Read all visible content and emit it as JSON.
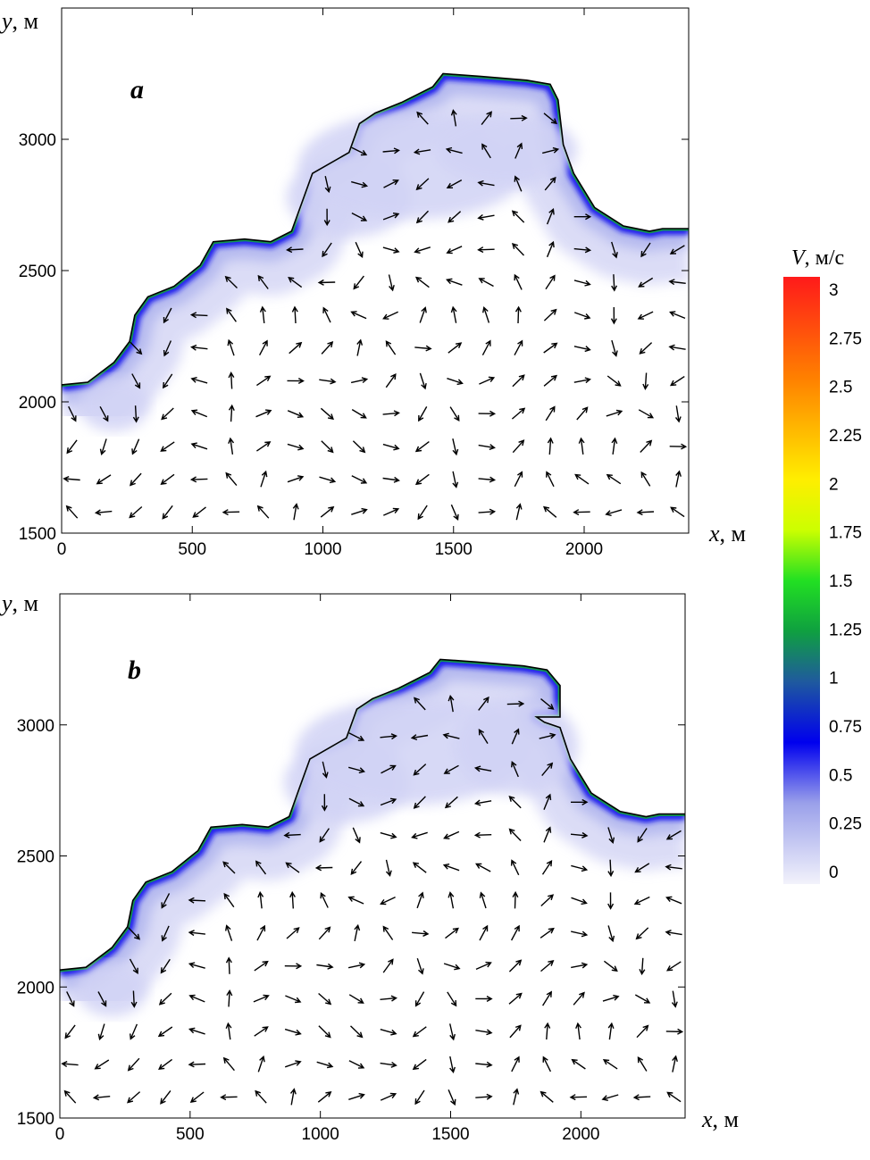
{
  "chart_data": [
    {
      "type": "vector-field",
      "panel_label": "a",
      "xlabel_var": "x",
      "xlabel_unit": ", м",
      "ylabel_var": "y",
      "ylabel_unit": ", м",
      "xlim": [
        0,
        2400
      ],
      "ylim": [
        1500,
        3500
      ],
      "xticks": [
        {
          "value": 0,
          "label": "0"
        },
        {
          "value": 500,
          "label": "500"
        },
        {
          "value": 1000,
          "label": "1000"
        },
        {
          "value": 1500,
          "label": "1500"
        },
        {
          "value": 2000,
          "label": "2000"
        }
      ],
      "yticks": [
        {
          "value": 1500,
          "label": "1500"
        },
        {
          "value": 2000,
          "label": "2000"
        },
        {
          "value": 2500,
          "label": "2500"
        },
        {
          "value": 3000,
          "label": "3000"
        }
      ],
      "coastline": [
        [
          0,
          2065
        ],
        [
          100,
          2075
        ],
        [
          200,
          2150
        ],
        [
          260,
          2230
        ],
        [
          280,
          2330
        ],
        [
          330,
          2400
        ],
        [
          430,
          2440
        ],
        [
          530,
          2520
        ],
        [
          580,
          2610
        ],
        [
          700,
          2620
        ],
        [
          800,
          2610
        ],
        [
          880,
          2650
        ],
        [
          920,
          2760
        ],
        [
          960,
          2870
        ],
        [
          1100,
          2950
        ],
        [
          1140,
          3060
        ],
        [
          1200,
          3100
        ],
        [
          1300,
          3140
        ],
        [
          1420,
          3200
        ],
        [
          1460,
          3250
        ],
        [
          1600,
          3240
        ],
        [
          1780,
          3225
        ],
        [
          1870,
          3210
        ],
        [
          1900,
          3150
        ],
        [
          1920,
          2980
        ],
        [
          1960,
          2870
        ],
        [
          2040,
          2740
        ],
        [
          2150,
          2670
        ],
        [
          2250,
          2650
        ],
        [
          2300,
          2660
        ],
        [
          2400,
          2660
        ]
      ]
    },
    {
      "type": "vector-field",
      "panel_label": "b",
      "xlabel_var": "x",
      "xlabel_unit": ", м",
      "ylabel_var": "y",
      "ylabel_unit": ", м",
      "xlim": [
        0,
        2400
      ],
      "ylim": [
        1500,
        3500
      ],
      "xticks": [
        {
          "value": 0,
          "label": "0"
        },
        {
          "value": 500,
          "label": "500"
        },
        {
          "value": 1000,
          "label": "1000"
        },
        {
          "value": 1500,
          "label": "1500"
        },
        {
          "value": 2000,
          "label": "2000"
        }
      ],
      "yticks": [
        {
          "value": 1500,
          "label": "1500"
        },
        {
          "value": 2000,
          "label": "2000"
        },
        {
          "value": 2500,
          "label": "2500"
        },
        {
          "value": 3000,
          "label": "3000"
        }
      ],
      "coastline": [
        [
          0,
          2065
        ],
        [
          100,
          2075
        ],
        [
          200,
          2150
        ],
        [
          260,
          2230
        ],
        [
          280,
          2330
        ],
        [
          330,
          2400
        ],
        [
          430,
          2440
        ],
        [
          530,
          2520
        ],
        [
          580,
          2610
        ],
        [
          700,
          2620
        ],
        [
          800,
          2610
        ],
        [
          880,
          2650
        ],
        [
          920,
          2760
        ],
        [
          960,
          2870
        ],
        [
          1100,
          2950
        ],
        [
          1140,
          3060
        ],
        [
          1200,
          3100
        ],
        [
          1300,
          3140
        ],
        [
          1420,
          3200
        ],
        [
          1460,
          3250
        ],
        [
          1600,
          3240
        ],
        [
          1780,
          3225
        ],
        [
          1870,
          3210
        ],
        [
          1920,
          3150
        ],
        [
          1920,
          3030
        ],
        [
          1830,
          3030
        ],
        [
          1860,
          3010
        ],
        [
          1920,
          2990
        ],
        [
          1960,
          2870
        ],
        [
          2040,
          2740
        ],
        [
          2150,
          2670
        ],
        [
          2250,
          2650
        ],
        [
          2300,
          2660
        ],
        [
          2400,
          2660
        ]
      ]
    }
  ],
  "colorbar": {
    "title_var": "V",
    "title_unit": ", м/с",
    "min": 0,
    "max": 3,
    "ticks": [
      {
        "value": 0,
        "label": "0"
      },
      {
        "value": 0.25,
        "label": "0.25"
      },
      {
        "value": 0.5,
        "label": "0.5"
      },
      {
        "value": 0.75,
        "label": "0.75"
      },
      {
        "value": 1,
        "label": "1"
      },
      {
        "value": 1.25,
        "label": "1.25"
      },
      {
        "value": 1.5,
        "label": "1.5"
      },
      {
        "value": 1.75,
        "label": "1.75"
      },
      {
        "value": 2,
        "label": "2"
      },
      {
        "value": 2.25,
        "label": "2.25"
      },
      {
        "value": 2.5,
        "label": "2.5"
      },
      {
        "value": 2.75,
        "label": "2.75"
      },
      {
        "value": 3,
        "label": "3"
      }
    ],
    "stops": [
      {
        "value": 0,
        "color": "#f2f2fb"
      },
      {
        "value": 0.4,
        "color": "#9aa0ea"
      },
      {
        "value": 0.7,
        "color": "#0000ee"
      },
      {
        "value": 1.0,
        "color": "#1f5a9e"
      },
      {
        "value": 1.25,
        "color": "#0fa040"
      },
      {
        "value": 1.5,
        "color": "#22e022"
      },
      {
        "value": 1.75,
        "color": "#ccff00"
      },
      {
        "value": 2.0,
        "color": "#ffee00"
      },
      {
        "value": 2.5,
        "color": "#ff8000"
      },
      {
        "value": 3.0,
        "color": "#ff1a1a"
      }
    ]
  }
}
